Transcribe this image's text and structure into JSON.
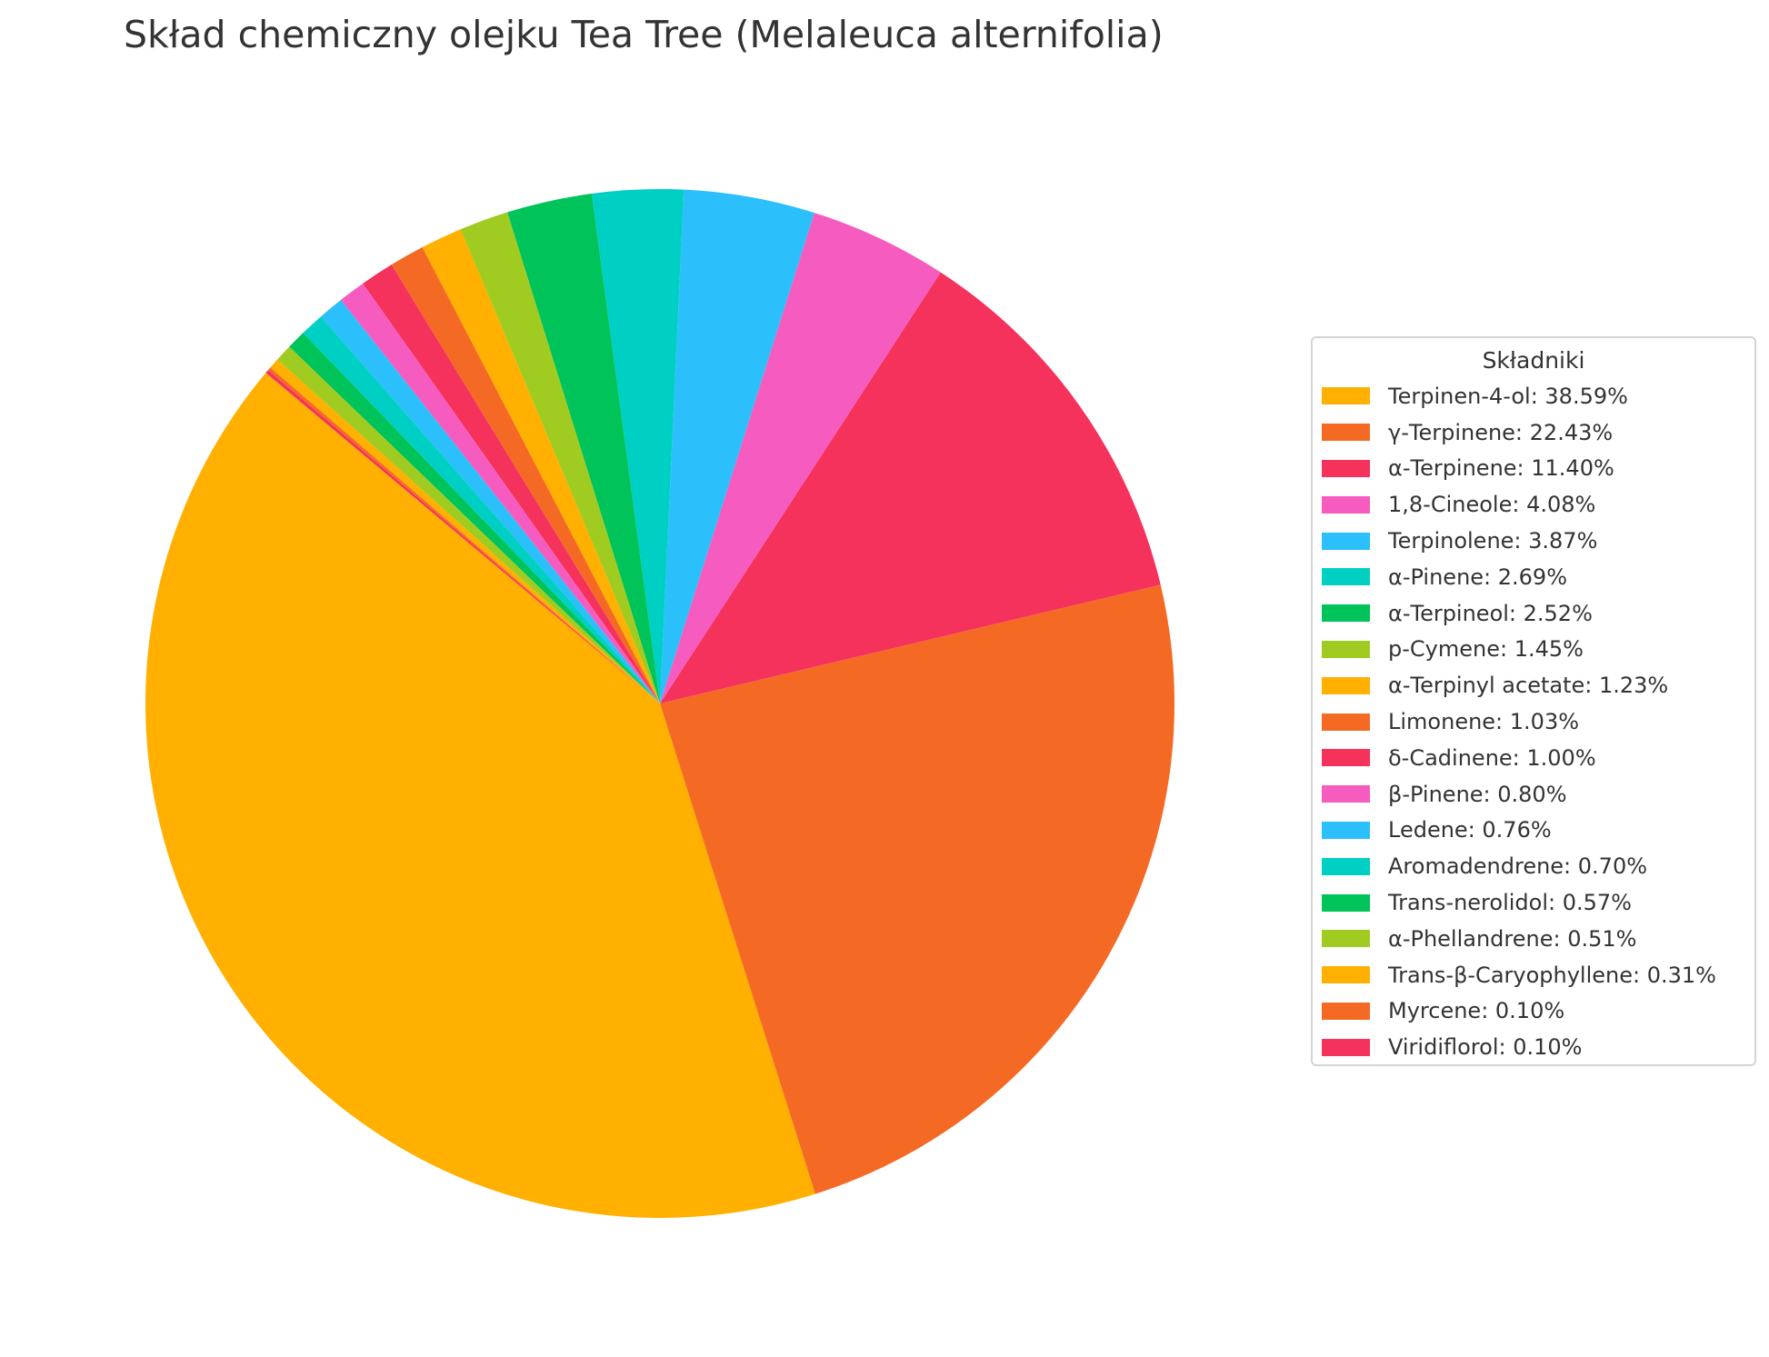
{
  "chart_data": {
    "type": "pie",
    "title": "Skład chemiczny olejku Tea Tree (Melaleuca alternifolia)",
    "legend_title": "Składniki",
    "legend_position": "right",
    "start_angle_deg": 140,
    "direction": "counterclockwise",
    "slices": [
      {
        "label": "Terpinen-4-ol: 38.59%",
        "name": "Terpinen-4-ol",
        "value": 38.59,
        "color": "#ffb000"
      },
      {
        "label": "γ-Terpinene: 22.43%",
        "name": "γ-Terpinene",
        "value": 22.43,
        "color": "#f46a25"
      },
      {
        "label": "α-Terpinene: 11.40%",
        "name": "α-Terpinene",
        "value": 11.4,
        "color": "#f5325b"
      },
      {
        "label": "1,8-Cineole: 4.08%",
        "name": "1,8-Cineole",
        "value": 4.08,
        "color": "#f65cbf"
      },
      {
        "label": "Terpinolene: 3.87%",
        "name": "Terpinolene",
        "value": 3.87,
        "color": "#2bbffb"
      },
      {
        "label": "α-Pinene: 2.69%",
        "name": "α-Pinene",
        "value": 2.69,
        "color": "#00cfc3"
      },
      {
        "label": "α-Terpineol: 2.52%",
        "name": "α-Terpineol",
        "value": 2.52,
        "color": "#00c35a"
      },
      {
        "label": "p-Cymene: 1.45%",
        "name": "p-Cymene",
        "value": 1.45,
        "color": "#a0cc22"
      },
      {
        "label": "α-Terpinyl acetate: 1.23%",
        "name": "α-Terpinyl acetate",
        "value": 1.23,
        "color": "#ffb000"
      },
      {
        "label": "Limonene: 1.03%",
        "name": "Limonene",
        "value": 1.03,
        "color": "#f46a25"
      },
      {
        "label": "δ-Cadinene: 1.00%",
        "name": "δ-Cadinene",
        "value": 1.0,
        "color": "#f5325b"
      },
      {
        "label": "β-Pinene: 0.80%",
        "name": "β-Pinene",
        "value": 0.8,
        "color": "#f65cbf"
      },
      {
        "label": "Ledene: 0.76%",
        "name": "Ledene",
        "value": 0.76,
        "color": "#2bbffb"
      },
      {
        "label": "Aromadendrene: 0.70%",
        "name": "Aromadendrene",
        "value": 0.7,
        "color": "#00cfc3"
      },
      {
        "label": "Trans-nerolidol: 0.57%",
        "name": "Trans-nerolidol",
        "value": 0.57,
        "color": "#00c35a"
      },
      {
        "label": "α-Phellandrene: 0.51%",
        "name": "α-Phellandrene",
        "value": 0.51,
        "color": "#a0cc22"
      },
      {
        "label": "Trans-β-Caryophyllene: 0.31%",
        "name": "Trans-β-Caryophyllene",
        "value": 0.31,
        "color": "#ffb000"
      },
      {
        "label": "Myrcene: 0.10%",
        "name": "Myrcene",
        "value": 0.1,
        "color": "#f46a25"
      },
      {
        "label": "Viridiflorol: 0.10%",
        "name": "Viridiflorol",
        "value": 0.1,
        "color": "#f5325b"
      }
    ]
  }
}
